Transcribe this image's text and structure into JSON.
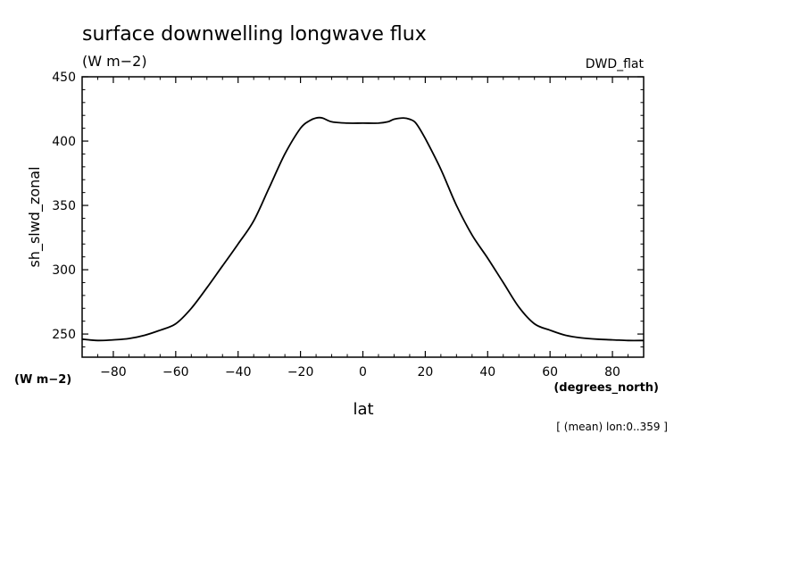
{
  "chart_data": {
    "type": "line",
    "title": "surface downwelling longwave flux",
    "subtitle": "(W m−2)",
    "model_label": "DWD_flat",
    "ylabel": "sh_slwd_zonal",
    "yunits": "(W m−2)",
    "xlabel": "lat",
    "xunits": "(degrees_north)",
    "footnote": "[ (mean) lon:0..359 ]",
    "xlim": [
      -90,
      90
    ],
    "ylim": [
      232,
      450
    ],
    "x_ticks": [
      -80,
      -60,
      -40,
      -20,
      0,
      20,
      40,
      60,
      80
    ],
    "x_tick_labels": [
      "−80",
      "−60",
      "−40",
      "−20",
      "0",
      "20",
      "40",
      "60",
      "80"
    ],
    "y_ticks": [
      250,
      300,
      350,
      400,
      450
    ],
    "y_tick_labels": [
      "250",
      "300",
      "350",
      "400",
      "450"
    ],
    "grid": false,
    "series": [
      {
        "x": [
          -90,
          -85,
          -80,
          -75,
          -70,
          -65,
          -60,
          -55,
          -50,
          -45,
          -40,
          -35,
          -30,
          -25,
          -20,
          -17,
          -15,
          -13,
          -10,
          -5,
          0,
          5,
          8,
          10,
          13,
          15,
          17,
          20,
          25,
          30,
          35,
          40,
          45,
          50,
          55,
          60,
          65,
          70,
          75,
          80,
          85,
          90
        ],
        "y": [
          246,
          245,
          245.5,
          246.5,
          249,
          253,
          258,
          270,
          286,
          303,
          320,
          338,
          364,
          390,
          410,
          416,
          418,
          418,
          415,
          414,
          414,
          414,
          415,
          417,
          418,
          417,
          414,
          402,
          378,
          350,
          327,
          309,
          290,
          271,
          258,
          253,
          249,
          247,
          246,
          245.5,
          245,
          245
        ]
      }
    ]
  }
}
